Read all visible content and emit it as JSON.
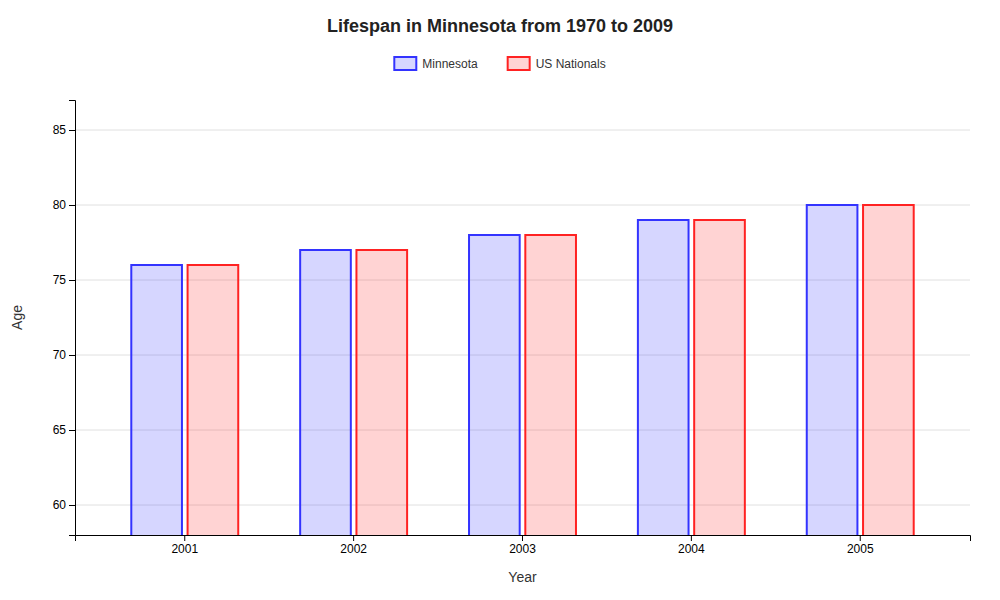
{
  "chart_data": {
    "type": "bar",
    "title": "Lifespan in Minnesota from 1970 to 2009",
    "x_label": "Year",
    "y_label": "Age",
    "categories": [
      "2001",
      "2002",
      "2003",
      "2004",
      "2005"
    ],
    "series": [
      {
        "name": "Minnesota",
        "color": "#3333ff",
        "values": [
          76,
          77,
          78,
          79,
          80
        ]
      },
      {
        "name": "US Nationals",
        "color": "#ff2222",
        "values": [
          76,
          77,
          78,
          79,
          80
        ]
      }
    ],
    "ylim": [
      58,
      87
    ],
    "yticks": [
      60,
      65,
      70,
      75,
      80,
      85
    ],
    "grid": true,
    "legend": "top"
  }
}
